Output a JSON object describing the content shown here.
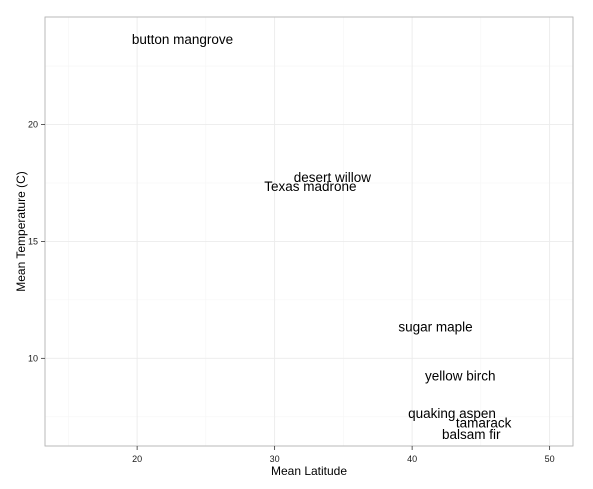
{
  "chart_data": {
    "type": "scatter",
    "title": "",
    "xlabel": "Mean Latitude",
    "ylabel": "Mean Temperature (C)",
    "xlim": [
      13.3,
      51.7
    ],
    "ylim": [
      6.25,
      24.6
    ],
    "x_ticks": [
      20,
      30,
      40,
      50
    ],
    "y_ticks": [
      10,
      15,
      20
    ],
    "grid": true,
    "legend": "none",
    "points": [
      {
        "label": "button mangrove",
        "x": 23.3,
        "y": 23.6
      },
      {
        "label": "desert willow",
        "x": 34.2,
        "y": 17.7
      },
      {
        "label": "Texas madrone",
        "x": 32.6,
        "y": 17.3
      },
      {
        "label": "sugar maple",
        "x": 41.7,
        "y": 11.3
      },
      {
        "label": "yellow birch",
        "x": 43.5,
        "y": 9.2
      },
      {
        "label": "quaking aspen",
        "x": 42.9,
        "y": 7.6
      },
      {
        "label": "tamarack",
        "x": 45.2,
        "y": 7.2
      },
      {
        "label": "balsam fir",
        "x": 44.3,
        "y": 6.7
      }
    ]
  }
}
